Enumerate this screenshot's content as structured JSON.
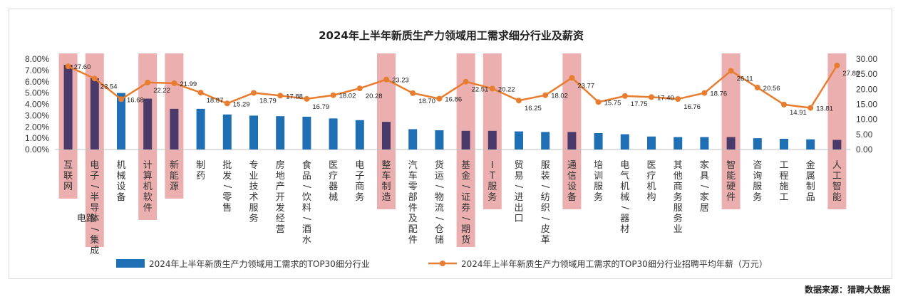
{
  "chart_data": {
    "type": "bar+line",
    "title": "2024年上半年新质生产力领域用工需求细分行业及薪资",
    "categories": [
      "互联网",
      "电子/半导体/集成电路",
      "机械设备",
      "计算机软件",
      "新能源",
      "制药",
      "批发/零售",
      "专业技术服务",
      "房地产开发经营",
      "食品/饮料/酒水",
      "医疗器械",
      "电子商务",
      "整车制造",
      "汽车零部件及配件",
      "货运/物流/仓储",
      "基金/证券/期货",
      "IT服务",
      "贸易/进出口",
      "服装/纺织/皮革",
      "通信设备",
      "培训服务",
      "电气机械/器材",
      "医疗机构",
      "其他商务服务业",
      "家具/家居",
      "智能硬件",
      "咨询服务",
      "工程施工",
      "金属制品",
      "人工智能"
    ],
    "series": [
      {
        "name": "2024年上半年新质生产力领域用工需求的TOP30细分行业",
        "type": "bar",
        "axis": "left",
        "color": "#1f6fb5",
        "highlight_color": "#4a3a6a",
        "values": [
          7.5,
          6.3,
          5.0,
          4.5,
          3.6,
          3.6,
          3.1,
          3.0,
          2.95,
          2.9,
          2.75,
          2.6,
          2.45,
          1.8,
          1.7,
          1.65,
          1.65,
          1.6,
          1.55,
          1.55,
          1.45,
          1.35,
          1.15,
          1.1,
          1.1,
          1.1,
          1.0,
          0.95,
          0.9,
          0.85
        ]
      },
      {
        "name": "2024年上半年新质生产力领域用工需求的TOP30细分行业招聘平均年薪（万元）",
        "type": "line",
        "axis": "right",
        "color": "#e87d2f",
        "values": [
          27.6,
          23.54,
          16.68,
          22.22,
          21.99,
          18.87,
          15.29,
          18.79,
          17.88,
          16.79,
          18.02,
          20.28,
          23.23,
          18.7,
          16.86,
          22.51,
          20.22,
          16.25,
          18.02,
          23.77,
          15.75,
          17.75,
          17.4,
          16.76,
          18.76,
          26.11,
          20.56,
          14.91,
          13.81,
          27.88
        ],
        "labels": [
          "27.60",
          "23.54",
          "16.68",
          "22.22",
          "21.99",
          "18.87",
          "15.29",
          "18.79",
          "17.88",
          "16.79",
          "18.02",
          "20.28",
          "23.23",
          "18.70",
          "16.86",
          "22.51",
          "20.22",
          "16.25",
          "18.02",
          "23.77",
          "15.75",
          "17.75",
          "17.40",
          "16.76",
          "18.76",
          "26.11",
          "20.56",
          "14.91",
          "13.81",
          "27.88"
        ]
      }
    ],
    "highlighted": [
      "互联网",
      "电子/半导体/集成电路",
      "计算机软件",
      "新能源",
      "整车制造",
      "基金/证券/期货",
      "IT服务",
      "通信设备",
      "智能硬件",
      "人工智能"
    ],
    "highlight_color": "#e9a1a1",
    "y_left": {
      "min": 0,
      "max": 8,
      "ticks": [
        "0.00%",
        "1.00%",
        "2.00%",
        "3.00%",
        "4.00%",
        "5.00%",
        "6.00%",
        "7.00%",
        "8.00%"
      ]
    },
    "y_right": {
      "min": 0,
      "max": 30,
      "ticks": [
        "0.00",
        "5.00",
        "10.00",
        "15.00",
        "20.00",
        "25.00",
        "30.00"
      ]
    },
    "legend_position": "bottom"
  },
  "source": "数据来源：猎聘大数据"
}
